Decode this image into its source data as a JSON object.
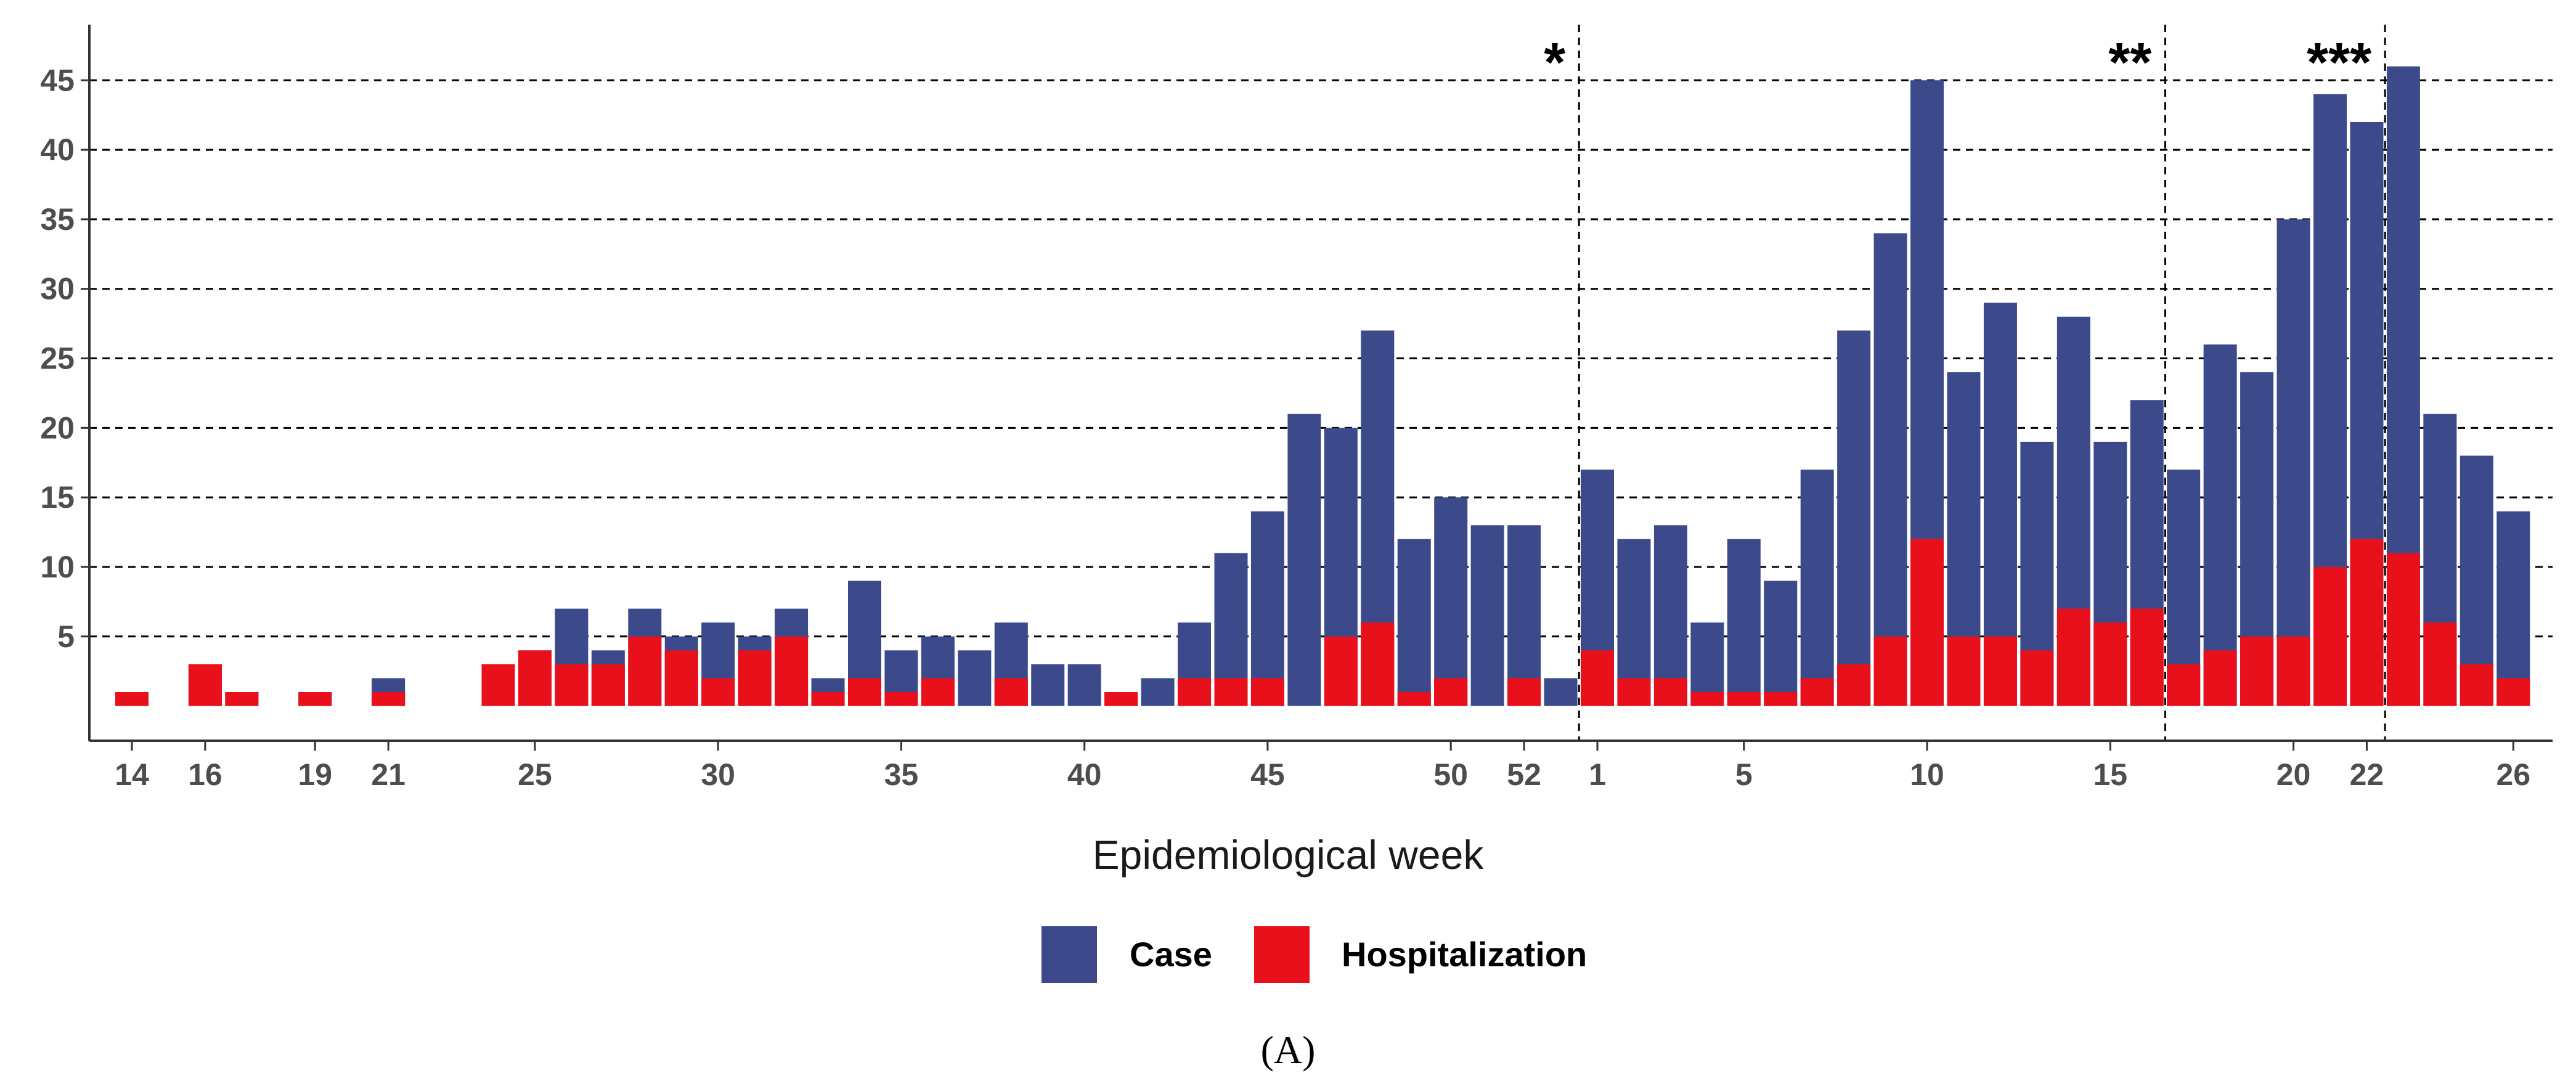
{
  "chart_data": {
    "type": "bar",
    "stacked": "overlay",
    "title": "",
    "xlabel": "Epidemiological week",
    "ylabel": "",
    "ylim": [
      -2.5,
      49
    ],
    "y_ticks": [
      "5",
      "10",
      "15",
      "20",
      "25",
      "30",
      "35",
      "40",
      "45"
    ],
    "grid": "horizontal dashed",
    "legend_position": "bottom",
    "categories": [
      "14",
      "15",
      "16",
      "17",
      "18",
      "19",
      "20",
      "21",
      "22",
      "23",
      "24",
      "25",
      "26",
      "27",
      "28",
      "29",
      "30",
      "31",
      "32",
      "33",
      "34",
      "35",
      "36",
      "37",
      "38",
      "39",
      "40",
      "41",
      "42",
      "43",
      "44",
      "45",
      "46",
      "47",
      "48",
      "49",
      "50",
      "51",
      "52",
      "53",
      "1",
      "2",
      "3",
      "4",
      "5",
      "6",
      "7",
      "8",
      "9",
      "10",
      "11",
      "12",
      "13",
      "14",
      "15",
      "16",
      "17",
      "18",
      "19",
      "20",
      "21",
      "22",
      "23",
      "24",
      "25",
      "26"
    ],
    "x_tick_labels": [
      {
        "label": "14",
        "index": 0
      },
      {
        "label": "16",
        "index": 2
      },
      {
        "label": "19",
        "index": 5
      },
      {
        "label": "21",
        "index": 7
      },
      {
        "label": "25",
        "index": 11
      },
      {
        "label": "30",
        "index": 16
      },
      {
        "label": "35",
        "index": 21
      },
      {
        "label": "40",
        "index": 26
      },
      {
        "label": "45",
        "index": 31
      },
      {
        "label": "50",
        "index": 36
      },
      {
        "label": "52",
        "index": 38
      },
      {
        "label": "1",
        "index": 40
      },
      {
        "label": "5",
        "index": 44
      },
      {
        "label": "10",
        "index": 49
      },
      {
        "label": "15",
        "index": 54
      },
      {
        "label": "20",
        "index": 59
      },
      {
        "label": "22",
        "index": 61
      },
      {
        "label": "26",
        "index": 65
      }
    ],
    "series": [
      {
        "name": "Case",
        "color": "#3c4a8c",
        "values": [
          1,
          0,
          3,
          1,
          0,
          1,
          0,
          2,
          0,
          0,
          3,
          4,
          7,
          4,
          7,
          5,
          6,
          5,
          7,
          2,
          9,
          4,
          5,
          4,
          6,
          3,
          3,
          1,
          2,
          6,
          11,
          14,
          21,
          20,
          27,
          12,
          15,
          13,
          13,
          2,
          17,
          12,
          13,
          6,
          12,
          9,
          17,
          27,
          34,
          45,
          24,
          29,
          19,
          28,
          19,
          22,
          17,
          26,
          24,
          35,
          44,
          42,
          46,
          21,
          18,
          14
        ]
      },
      {
        "name": "Hospitalization",
        "color": "#e8101a",
        "values": [
          1,
          0,
          3,
          1,
          0,
          1,
          0,
          1,
          0,
          0,
          3,
          4,
          3,
          3,
          5,
          4,
          2,
          4,
          5,
          1,
          2,
          1,
          2,
          0,
          2,
          0,
          0,
          1,
          0,
          2,
          2,
          2,
          0,
          5,
          6,
          1,
          2,
          0,
          2,
          0,
          4,
          2,
          2,
          1,
          1,
          1,
          2,
          3,
          5,
          12,
          5,
          5,
          4,
          7,
          6,
          7,
          3,
          4,
          5,
          5,
          10,
          12,
          11,
          6,
          3,
          2
        ]
      }
    ],
    "vertical_markers": [
      {
        "after_index": 39,
        "label": "*"
      },
      {
        "after_index": 55,
        "label": "**"
      },
      {
        "after_index": 61,
        "label": "***"
      }
    ]
  },
  "legend": {
    "items": [
      {
        "label": "Case",
        "color": "#3c4a8c"
      },
      {
        "label": "Hospitalization",
        "color": "#e8101a"
      }
    ]
  },
  "panel_label": "(A)"
}
